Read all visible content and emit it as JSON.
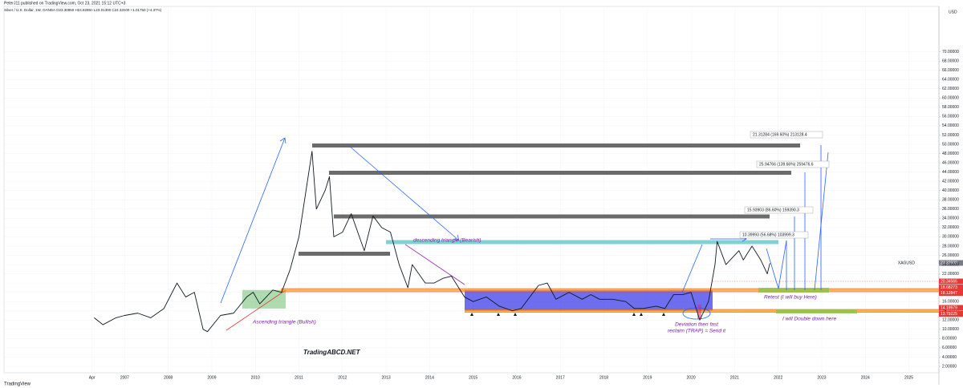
{
  "chart_data": {
    "type": "line",
    "title": "PeterJ11 published on TradingView.com, Oct 23, 2021 15:12 UTC+3",
    "subtitle": "Silver / U.S. Dollar, 1W, OANDA O23.30850 H24.82850 L23.01300 C24.32600 +1.01750 (+4.37%)",
    "y_label": "USD",
    "source": "TradingView",
    "grid": true,
    "log_scale": false,
    "color": "#131722",
    "xlim": [
      2004.23,
      2025.69
    ],
    "ylim": [
      0.61,
      79.46
    ],
    "xticks": [
      {
        "value": 2006.25,
        "label": "Apr"
      },
      2007,
      2008,
      2009,
      2010,
      2011,
      2012,
      2013,
      2014,
      2015,
      2016,
      2017,
      2018,
      2019,
      2020,
      2021,
      2022,
      2023,
      2024,
      2025
    ],
    "yticks": [
      {
        "value": 2,
        "label": "2.00000"
      },
      {
        "value": 4,
        "label": "4.00000"
      },
      {
        "value": 6,
        "label": "6.00000"
      },
      {
        "value": 8,
        "label": "8.00000"
      },
      {
        "value": 10,
        "label": "10.00000"
      },
      {
        "value": 12,
        "label": "12.00000"
      },
      {
        "value": 14,
        "label": "14.00000"
      },
      {
        "value": 16,
        "label": "16.00000"
      },
      {
        "value": 18,
        "label": "18.00000"
      },
      {
        "value": 20,
        "label": "20.00000"
      },
      {
        "value": 22,
        "label": "22.00000"
      },
      {
        "value": 24,
        "label": "24.00000"
      },
      {
        "value": 26,
        "label": "26.00000"
      },
      {
        "value": 28,
        "label": "28.00000"
      },
      {
        "value": 30,
        "label": "30.00000"
      },
      {
        "value": 32,
        "label": "32.00000"
      },
      {
        "value": 34,
        "label": "34.00000"
      },
      {
        "value": 36,
        "label": "36.00000"
      },
      {
        "value": 38,
        "label": "38.00000"
      },
      {
        "value": 40,
        "label": "40.00000"
      },
      {
        "value": 42,
        "label": "42.00000"
      },
      {
        "value": 44,
        "label": "44.00000"
      },
      {
        "value": 46,
        "label": "46.00000"
      },
      {
        "value": 48,
        "label": "48.00000"
      },
      {
        "value": 50,
        "label": "50.00000"
      },
      {
        "value": 52,
        "label": "52.00000"
      },
      {
        "value": 54,
        "label": "54.00000"
      },
      {
        "value": 56,
        "label": "56.00000"
      },
      {
        "value": 58,
        "label": "58.00000"
      },
      {
        "value": 60,
        "label": "60.00000"
      },
      {
        "value": 62,
        "label": "62.00000"
      },
      {
        "value": 64,
        "label": "64.00000"
      },
      {
        "value": 66,
        "label": "66.00000"
      },
      {
        "value": 68,
        "label": "68.00000"
      },
      {
        "value": 70,
        "label": "70.00000"
      }
    ],
    "x": [
      2006.3,
      2006.5,
      2006.8,
      2007.0,
      2007.3,
      2007.6,
      2007.9,
      2008.2,
      2008.4,
      2008.6,
      2008.8,
      2008.9,
      2009.2,
      2009.5,
      2009.8,
      2009.95,
      2010.1,
      2010.4,
      2010.6,
      2010.8,
      2011.0,
      2011.3,
      2011.4,
      2011.6,
      2011.7,
      2011.8,
      2012.0,
      2012.2,
      2012.5,
      2012.7,
      2012.9,
      2013.1,
      2013.3,
      2013.5,
      2013.6,
      2013.9,
      2014.1,
      2014.3,
      2014.5,
      2014.8,
      2015.0,
      2015.3,
      2015.6,
      2015.9,
      2016.1,
      2016.5,
      2016.7,
      2016.9,
      2017.2,
      2017.5,
      2017.7,
      2017.9,
      2018.2,
      2018.5,
      2018.7,
      2018.9,
      2019.2,
      2019.4,
      2019.6,
      2019.8,
      2020.0,
      2020.2,
      2020.4,
      2020.55,
      2020.6,
      2020.8,
      2021.1,
      2021.2,
      2021.4,
      2021.6,
      2021.75,
      2021.81
    ],
    "values": [
      12.5,
      11,
      12.5,
      13,
      13.5,
      12.5,
      14.5,
      20,
      17,
      18,
      10,
      9.5,
      13,
      13.5,
      17,
      18,
      15.5,
      18.5,
      18,
      23,
      30,
      48.5,
      36,
      40,
      43,
      30,
      31,
      35,
      27,
      34.5,
      32,
      31,
      24,
      19,
      24,
      20,
      20,
      21,
      21.5,
      17,
      16,
      17,
      15,
      14,
      14.5,
      19.5,
      20,
      16.5,
      18,
      16.5,
      17.5,
      16.5,
      16.5,
      16,
      14.5,
      14.5,
      15,
      14.5,
      17.5,
      17.5,
      18,
      12,
      16,
      24,
      29,
      24,
      27,
      25,
      28,
      25,
      22,
      24.3
    ],
    "annotations": {
      "ascending": "Ascending triangle (Bullish)",
      "descending": "descending triangle (Bearish)",
      "brand": "TradingABCD.NET",
      "retest": "Retest (I will buy Here)",
      "double": "I will Double down here",
      "deviation": [
        "Deviation then fast",
        "reclaim (TRAP) = Send it"
      ],
      "targets": [
        "21.31284 (169.60%) 213128.4",
        "25.94766 (139.66%) 259476.6",
        "15.93903 (86.60%) 159390.3",
        "10.39993 (56.68%) 103999.3"
      ]
    },
    "price_tags": {
      "symbol": "XAGUSD",
      "last": "24.32600",
      "levels": [
        "20.34565",
        "18.68273",
        "18.12847",
        "14.19979",
        "13.79225"
      ]
    }
  }
}
